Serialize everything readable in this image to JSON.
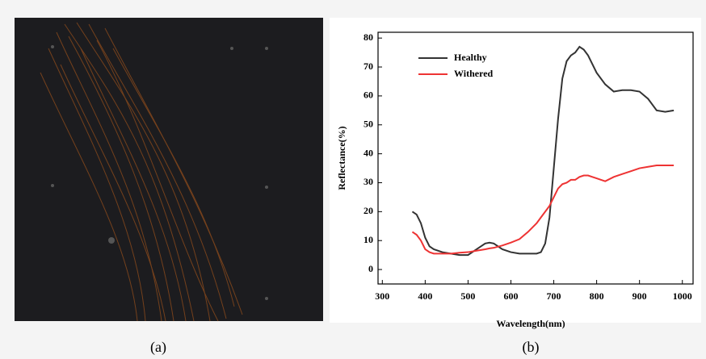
{
  "chart_data": {
    "type": "line",
    "x_label": "Wavelength(nm)",
    "y_label": "Reflectance(%)",
    "x": [
      370,
      380,
      390,
      400,
      410,
      420,
      440,
      460,
      480,
      500,
      520,
      540,
      550,
      560,
      580,
      600,
      620,
      640,
      660,
      670,
      680,
      690,
      700,
      710,
      720,
      730,
      740,
      750,
      760,
      770,
      780,
      790,
      800,
      820,
      840,
      860,
      880,
      900,
      920,
      940,
      960,
      980
    ],
    "series": [
      {
        "name": "Healthy",
        "color": "#333333",
        "values": [
          20,
          19,
          16,
          11,
          8,
          7,
          6,
          5.5,
          5,
          5,
          7,
          9,
          9.3,
          9,
          7,
          6,
          5.5,
          5.5,
          5.5,
          6,
          9,
          18,
          35,
          52,
          66,
          72,
          74,
          75,
          77,
          76,
          74,
          71,
          68,
          64,
          61.5,
          62,
          62,
          61.5,
          59,
          55,
          54.5,
          55
        ]
      },
      {
        "name": "Withered",
        "color": "#ee3333",
        "values": [
          13,
          12,
          10,
          7,
          6,
          5.5,
          5.5,
          5.5,
          5.8,
          6,
          6.5,
          7,
          7.3,
          7.5,
          8.3,
          9.3,
          10.5,
          13,
          16,
          18,
          20,
          22,
          25,
          28,
          29.5,
          30,
          31,
          31,
          32,
          32.5,
          32.5,
          32,
          31.5,
          30.5,
          32,
          33,
          34,
          35,
          35.5,
          36,
          36,
          36
        ]
      }
    ],
    "xlim": [
      290,
      1025
    ],
    "ylim": [
      -5,
      82
    ],
    "xticks": [
      300,
      400,
      500,
      600,
      700,
      800,
      900,
      1000
    ],
    "yticks": [
      0,
      10,
      20,
      30,
      40,
      50,
      60,
      70,
      80
    ],
    "legend": "upper-left"
  },
  "captions": [
    "(a)",
    "(b)"
  ]
}
